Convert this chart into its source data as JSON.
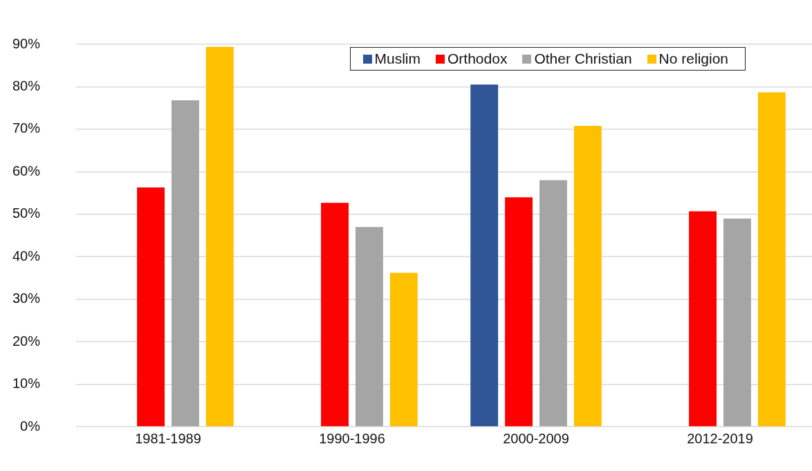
{
  "chart_data": {
    "type": "bar",
    "categories": [
      "1981-1989",
      "1990-1996",
      "2000-2009",
      "2012-2019"
    ],
    "series": [
      {
        "name": "Muslim",
        "color": "#2f5597",
        "values": [
          null,
          null,
          80.5,
          null
        ]
      },
      {
        "name": "Orthodox",
        "color": "#ff0000",
        "values": [
          56.3,
          52.7,
          54.0,
          50.7
        ]
      },
      {
        "name": "Other Christian",
        "color": "#a5a5a5",
        "values": [
          76.8,
          47.0,
          58.0,
          49.0
        ]
      },
      {
        "name": "No religion",
        "color": "#ffc000",
        "values": [
          89.4,
          36.2,
          70.8,
          78.7
        ]
      }
    ],
    "ylim": [
      0,
      90
    ],
    "yticks": [
      {
        "value": 0,
        "label": "0%"
      },
      {
        "value": 10,
        "label": "10%"
      },
      {
        "value": 20,
        "label": "20%"
      },
      {
        "value": 30,
        "label": "30%"
      },
      {
        "value": 40,
        "label": "40%"
      },
      {
        "value": 50,
        "label": "50%"
      },
      {
        "value": 60,
        "label": "60%"
      },
      {
        "value": 70,
        "label": "70%"
      },
      {
        "value": 80,
        "label": "80%"
      },
      {
        "value": 90,
        "label": "90%"
      }
    ],
    "grid": "y",
    "legend": "top"
  }
}
